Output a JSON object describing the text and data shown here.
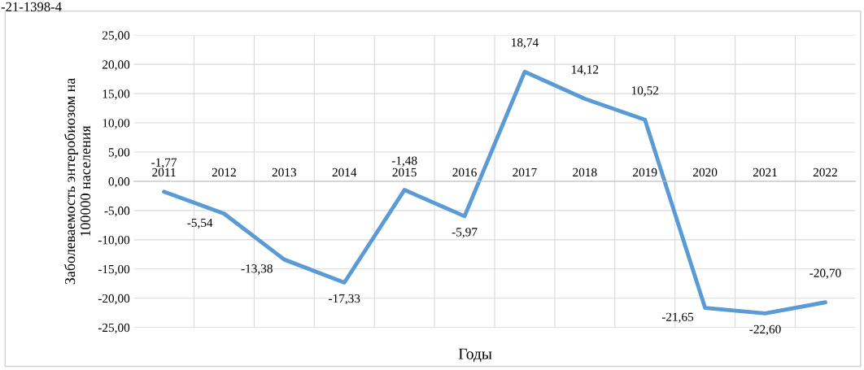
{
  "chart_data": {
    "type": "line",
    "ylabel": "Заболеваемость энтеробиозом на\n100000 населения",
    "xlabel": "Годы",
    "annotations": [
      "-21-1398-4"
    ],
    "categories": [
      "2011",
      "2012",
      "2013",
      "2014",
      "2015",
      "2016",
      "2017",
      "2018",
      "2019",
      "2020",
      "2021",
      "2022"
    ],
    "series": [
      {
        "color": "#5b9bd5",
        "values": [
          -1.77,
          -5.54,
          -13.38,
          -17.33,
          -1.48,
          -5.97,
          18.74,
          14.12,
          10.52,
          -21.65,
          -22.6,
          -20.7
        ],
        "value_labels": [
          "-1,77",
          "-5,54",
          "-13,38",
          "-17,33",
          "-1,48",
          "-5,97",
          "18,74",
          "14,12",
          "10,52",
          "-21,65",
          "-22,60",
          "-20,70"
        ]
      }
    ],
    "ylim": [
      -25,
      25
    ],
    "yticks": [
      {
        "value": 25,
        "label": "25,00"
      },
      {
        "value": 20,
        "label": "20,00"
      },
      {
        "value": 15,
        "label": "15,00"
      },
      {
        "value": 10,
        "label": "10,00"
      },
      {
        "value": 5,
        "label": "5,00"
      },
      {
        "value": 0,
        "label": "0,00"
      },
      {
        "value": -5,
        "label": "-5,00"
      },
      {
        "value": -10,
        "label": "-10,00"
      },
      {
        "value": -15,
        "label": "-15,00"
      },
      {
        "value": -20,
        "label": "-20,00"
      },
      {
        "value": -25,
        "label": "-25,00"
      }
    ],
    "grid": true,
    "marker": "none",
    "line_style": "solid"
  }
}
